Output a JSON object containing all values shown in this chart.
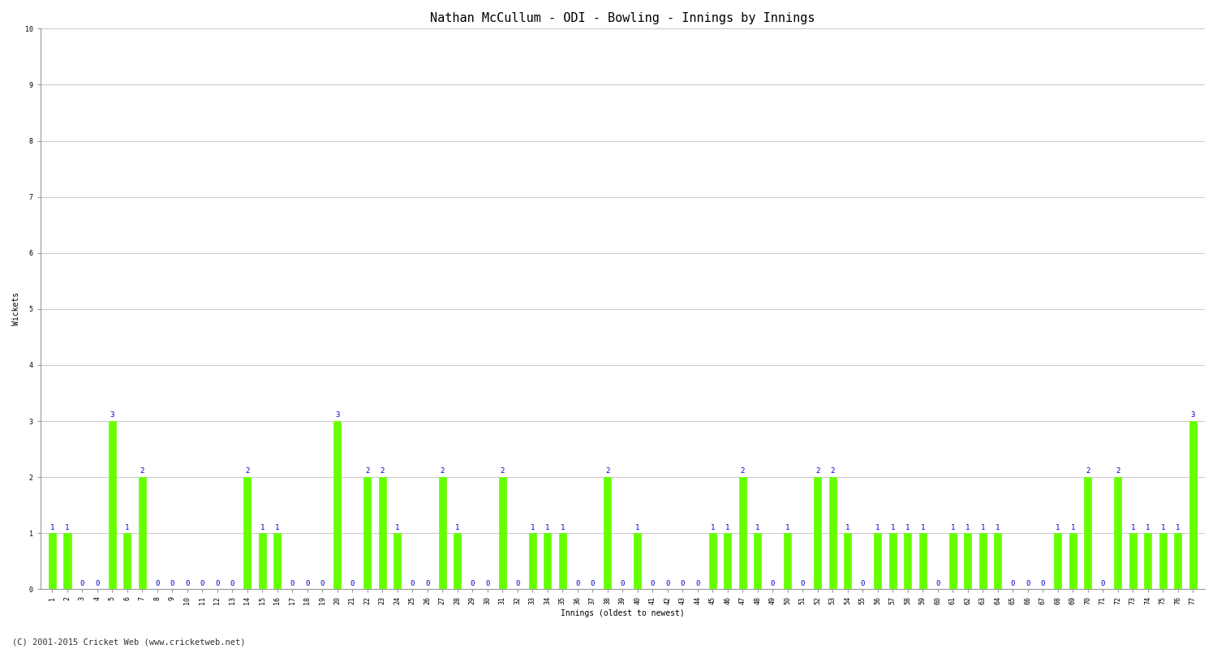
{
  "title": "Nathan McCullum - ODI - Bowling - Innings by Innings",
  "xlabel": "Innings (oldest to newest)",
  "ylabel": "Wickets",
  "ylim": [
    0,
    10
  ],
  "yticks": [
    0,
    1,
    2,
    3,
    4,
    5,
    6,
    7,
    8,
    9,
    10
  ],
  "background_color": "#ffffff",
  "bar_color": "#66ff00",
  "label_color": "#0000cc",
  "grid_color": "#cccccc",
  "innings": [
    1,
    2,
    3,
    4,
    5,
    6,
    7,
    8,
    9,
    10,
    11,
    12,
    13,
    14,
    15,
    16,
    17,
    18,
    19,
    20,
    21,
    22,
    23,
    24,
    25,
    26,
    27,
    28,
    29,
    30,
    31,
    32,
    33,
    34,
    35,
    36,
    37,
    38,
    39,
    40,
    41,
    42,
    43,
    44,
    45,
    46,
    47,
    48,
    49,
    50,
    51,
    52,
    53,
    54,
    55,
    56,
    57,
    58,
    59,
    60,
    61,
    62,
    63,
    64,
    65,
    66,
    67,
    68,
    69,
    70,
    71,
    72,
    73,
    74,
    75,
    76,
    77
  ],
  "wickets": [
    1,
    1,
    0,
    0,
    3,
    1,
    2,
    0,
    0,
    0,
    0,
    0,
    0,
    2,
    1,
    1,
    0,
    0,
    0,
    3,
    0,
    2,
    2,
    1,
    0,
    0,
    2,
    1,
    0,
    0,
    2,
    0,
    1,
    1,
    1,
    0,
    0,
    2,
    0,
    1,
    0,
    0,
    0,
    0,
    1,
    1,
    2,
    1,
    0,
    1,
    0,
    2,
    2,
    1,
    0,
    1,
    1,
    1,
    1,
    0,
    1,
    1,
    1,
    1,
    0,
    0,
    0,
    1,
    1,
    2,
    0,
    2,
    1,
    1,
    1,
    1,
    3
  ],
  "footer": "(C) 2001-2015 Cricket Web (www.cricketweb.net)",
  "title_fontsize": 11,
  "axis_fontsize": 7,
  "tick_fontsize": 6,
  "label_fontsize": 6.5,
  "footer_fontsize": 7.5
}
